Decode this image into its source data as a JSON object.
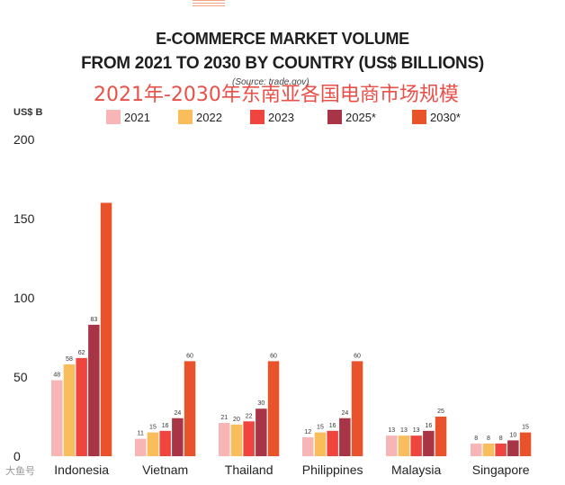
{
  "header": {
    "title_line1": "E-COMMERCE MARKET VOLUME",
    "title_line2": "FROM 2021 TO 2030 BY COUNTRY (US$ BILLIONS)",
    "source": "(Source: trade.gov)",
    "overlay_text": "2021年-2030年东南亚各国电商市场规模"
  },
  "watermark": "大鱼号",
  "chart_data": {
    "type": "bar",
    "title": "E-COMMERCE MARKET VOLUME FROM 2021 TO 2030 BY COUNTRY (US$ BILLIONS)",
    "ylabel": "US$ B",
    "xlabel": "",
    "ylim": [
      0,
      200
    ],
    "yticks": [
      0,
      50,
      100,
      150,
      200
    ],
    "grid": false,
    "legend_position": "top",
    "categories": [
      "Indonesia",
      "Vietnam",
      "Thailand",
      "Philippines",
      "Malaysia",
      "Singapore"
    ],
    "series": [
      {
        "name": "2021",
        "color": "#f7b5b5",
        "values": [
          48,
          11,
          21,
          12,
          13,
          8
        ]
      },
      {
        "name": "2022",
        "color": "#f9bd5c",
        "values": [
          58,
          15,
          20,
          15,
          13,
          8
        ]
      },
      {
        "name": "2023",
        "color": "#f0453e",
        "values": [
          62,
          16,
          22,
          16,
          13,
          8
        ]
      },
      {
        "name": "2025*",
        "color": "#a83545",
        "values": [
          83,
          24,
          30,
          24,
          16,
          10
        ]
      },
      {
        "name": "2030*",
        "color": "#e9532b",
        "values": [
          160,
          60,
          60,
          60,
          25,
          15
        ]
      }
    ],
    "data_labels": [
      [
        "48",
        "58",
        "62",
        "83",
        ""
      ],
      [
        "11",
        "15",
        "16",
        "24",
        "60"
      ],
      [
        "21",
        "20",
        "22",
        "30",
        "60"
      ],
      [
        "12",
        "15",
        "16",
        "24",
        "60"
      ],
      [
        "13",
        "13",
        "13",
        "16",
        "25"
      ],
      [
        "8",
        "8",
        "8",
        "10",
        "15"
      ]
    ]
  }
}
